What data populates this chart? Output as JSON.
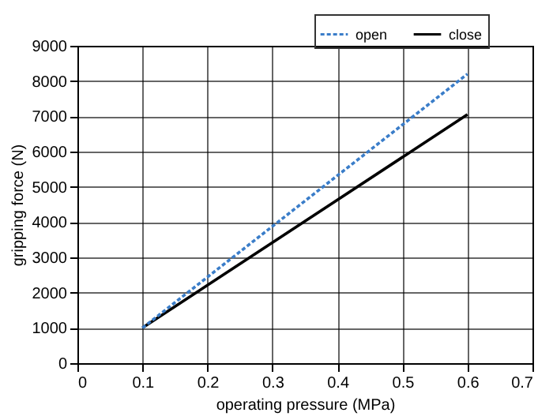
{
  "chart_data": {
    "type": "line",
    "xlabel": "operating pressure (MPa)",
    "ylabel": "gripping force (N)",
    "xlim": [
      0,
      0.7
    ],
    "xticks": [
      0,
      0.1,
      0.2,
      0.3,
      0.4,
      0.5,
      0.6,
      0.7
    ],
    "ylim": [
      0,
      9000
    ],
    "yticks": [
      0,
      1000,
      2000,
      3000,
      4000,
      5000,
      6000,
      7000,
      8000,
      9000
    ],
    "x": [
      0.1,
      0.6
    ],
    "grid": true,
    "legend": "top right",
    "marker": "none",
    "series": [
      {
        "name": "open",
        "color": "#3a7dc9",
        "line_style": "dotted",
        "values": [
          1000,
          8200
        ]
      },
      {
        "name": "close",
        "color": "#000000",
        "line_style": "solid",
        "values": [
          1000,
          7050
        ]
      }
    ]
  }
}
